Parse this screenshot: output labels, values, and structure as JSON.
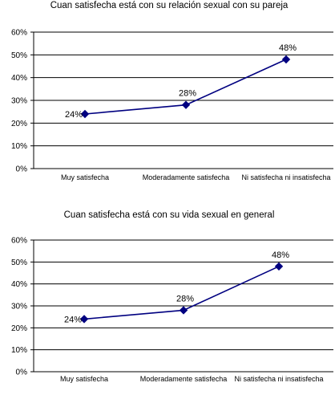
{
  "chart_data": [
    {
      "type": "line",
      "title": "Cuan satisfecha está con su relación sexual con su pareja",
      "categories": [
        "Muy satisfecha",
        "Moderadamente satisfecha",
        "Ni satisfecha ni insatisfecha"
      ],
      "values": [
        24,
        28,
        48
      ],
      "data_labels": [
        "24%",
        "28%",
        "48%"
      ],
      "yticks": [
        "0%",
        "10%",
        "20%",
        "30%",
        "40%",
        "50%",
        "60%"
      ],
      "ylim": [
        0,
        60
      ],
      "grid": true,
      "color": "#000080"
    },
    {
      "type": "line",
      "title": "Cuan satisfecha está con su vida sexual en general",
      "categories": [
        "Muy satisfecha",
        "Moderadamente satisfecha",
        "Ni satisfecha ni insatisfecha"
      ],
      "values": [
        24,
        28,
        48
      ],
      "data_labels": [
        "24%",
        "28%",
        "48%"
      ],
      "yticks": [
        "0%",
        "10%",
        "20%",
        "30%",
        "40%",
        "50%",
        "60%"
      ],
      "ylim": [
        0,
        60
      ],
      "grid": true,
      "color": "#000080"
    }
  ]
}
